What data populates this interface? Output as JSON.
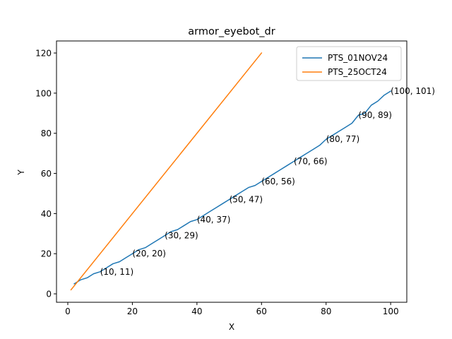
{
  "chart_data": {
    "type": "line",
    "title": "armor_eyebot_dr",
    "xlabel": "X",
    "ylabel": "Y",
    "xlim": [
      -3.5,
      105
    ],
    "ylim": [
      -4.2,
      126
    ],
    "xticks": [
      0,
      20,
      40,
      60,
      80,
      100
    ],
    "yticks": [
      0,
      20,
      40,
      60,
      80,
      100,
      120
    ],
    "grid": false,
    "legend_position": "top-right",
    "series": [
      {
        "name": "PTS_01NOV24",
        "color": "#1f77b4",
        "x": [
          2,
          4,
          6,
          8,
          10,
          12,
          14,
          16,
          18,
          20,
          22,
          24,
          26,
          28,
          30,
          32,
          34,
          36,
          38,
          40,
          42,
          44,
          46,
          48,
          50,
          52,
          54,
          56,
          58,
          60,
          62,
          64,
          66,
          68,
          70,
          72,
          74,
          76,
          78,
          80,
          82,
          84,
          86,
          88,
          90,
          92,
          94,
          96,
          98,
          100
        ],
        "y": [
          5,
          7,
          8,
          10,
          11,
          13,
          15,
          16,
          18,
          20,
          22,
          23,
          25,
          27,
          29,
          31,
          32,
          34,
          36,
          37,
          39,
          41,
          43,
          45,
          47,
          49,
          51,
          53,
          54,
          56,
          58,
          60,
          62,
          64,
          66,
          68,
          70,
          72,
          74,
          77,
          79,
          81,
          83,
          85,
          89,
          90,
          94,
          96,
          99,
          101
        ]
      },
      {
        "name": "PTS_25OCT24",
        "color": "#ff7f0e",
        "x": [
          1,
          60
        ],
        "y": [
          2,
          120
        ]
      }
    ],
    "annotations": [
      {
        "x": 10,
        "y": 11,
        "text": "(10, 11)"
      },
      {
        "x": 20,
        "y": 20,
        "text": "(20, 20)"
      },
      {
        "x": 30,
        "y": 29,
        "text": "(30, 29)"
      },
      {
        "x": 40,
        "y": 37,
        "text": "(40, 37)"
      },
      {
        "x": 50,
        "y": 47,
        "text": "(50, 47)"
      },
      {
        "x": 60,
        "y": 56,
        "text": "(60, 56)"
      },
      {
        "x": 70,
        "y": 66,
        "text": "(70, 66)"
      },
      {
        "x": 80,
        "y": 77,
        "text": "(80, 77)"
      },
      {
        "x": 90,
        "y": 89,
        "text": "(90, 89)"
      },
      {
        "x": 100,
        "y": 101,
        "text": "(100, 101)"
      }
    ]
  }
}
